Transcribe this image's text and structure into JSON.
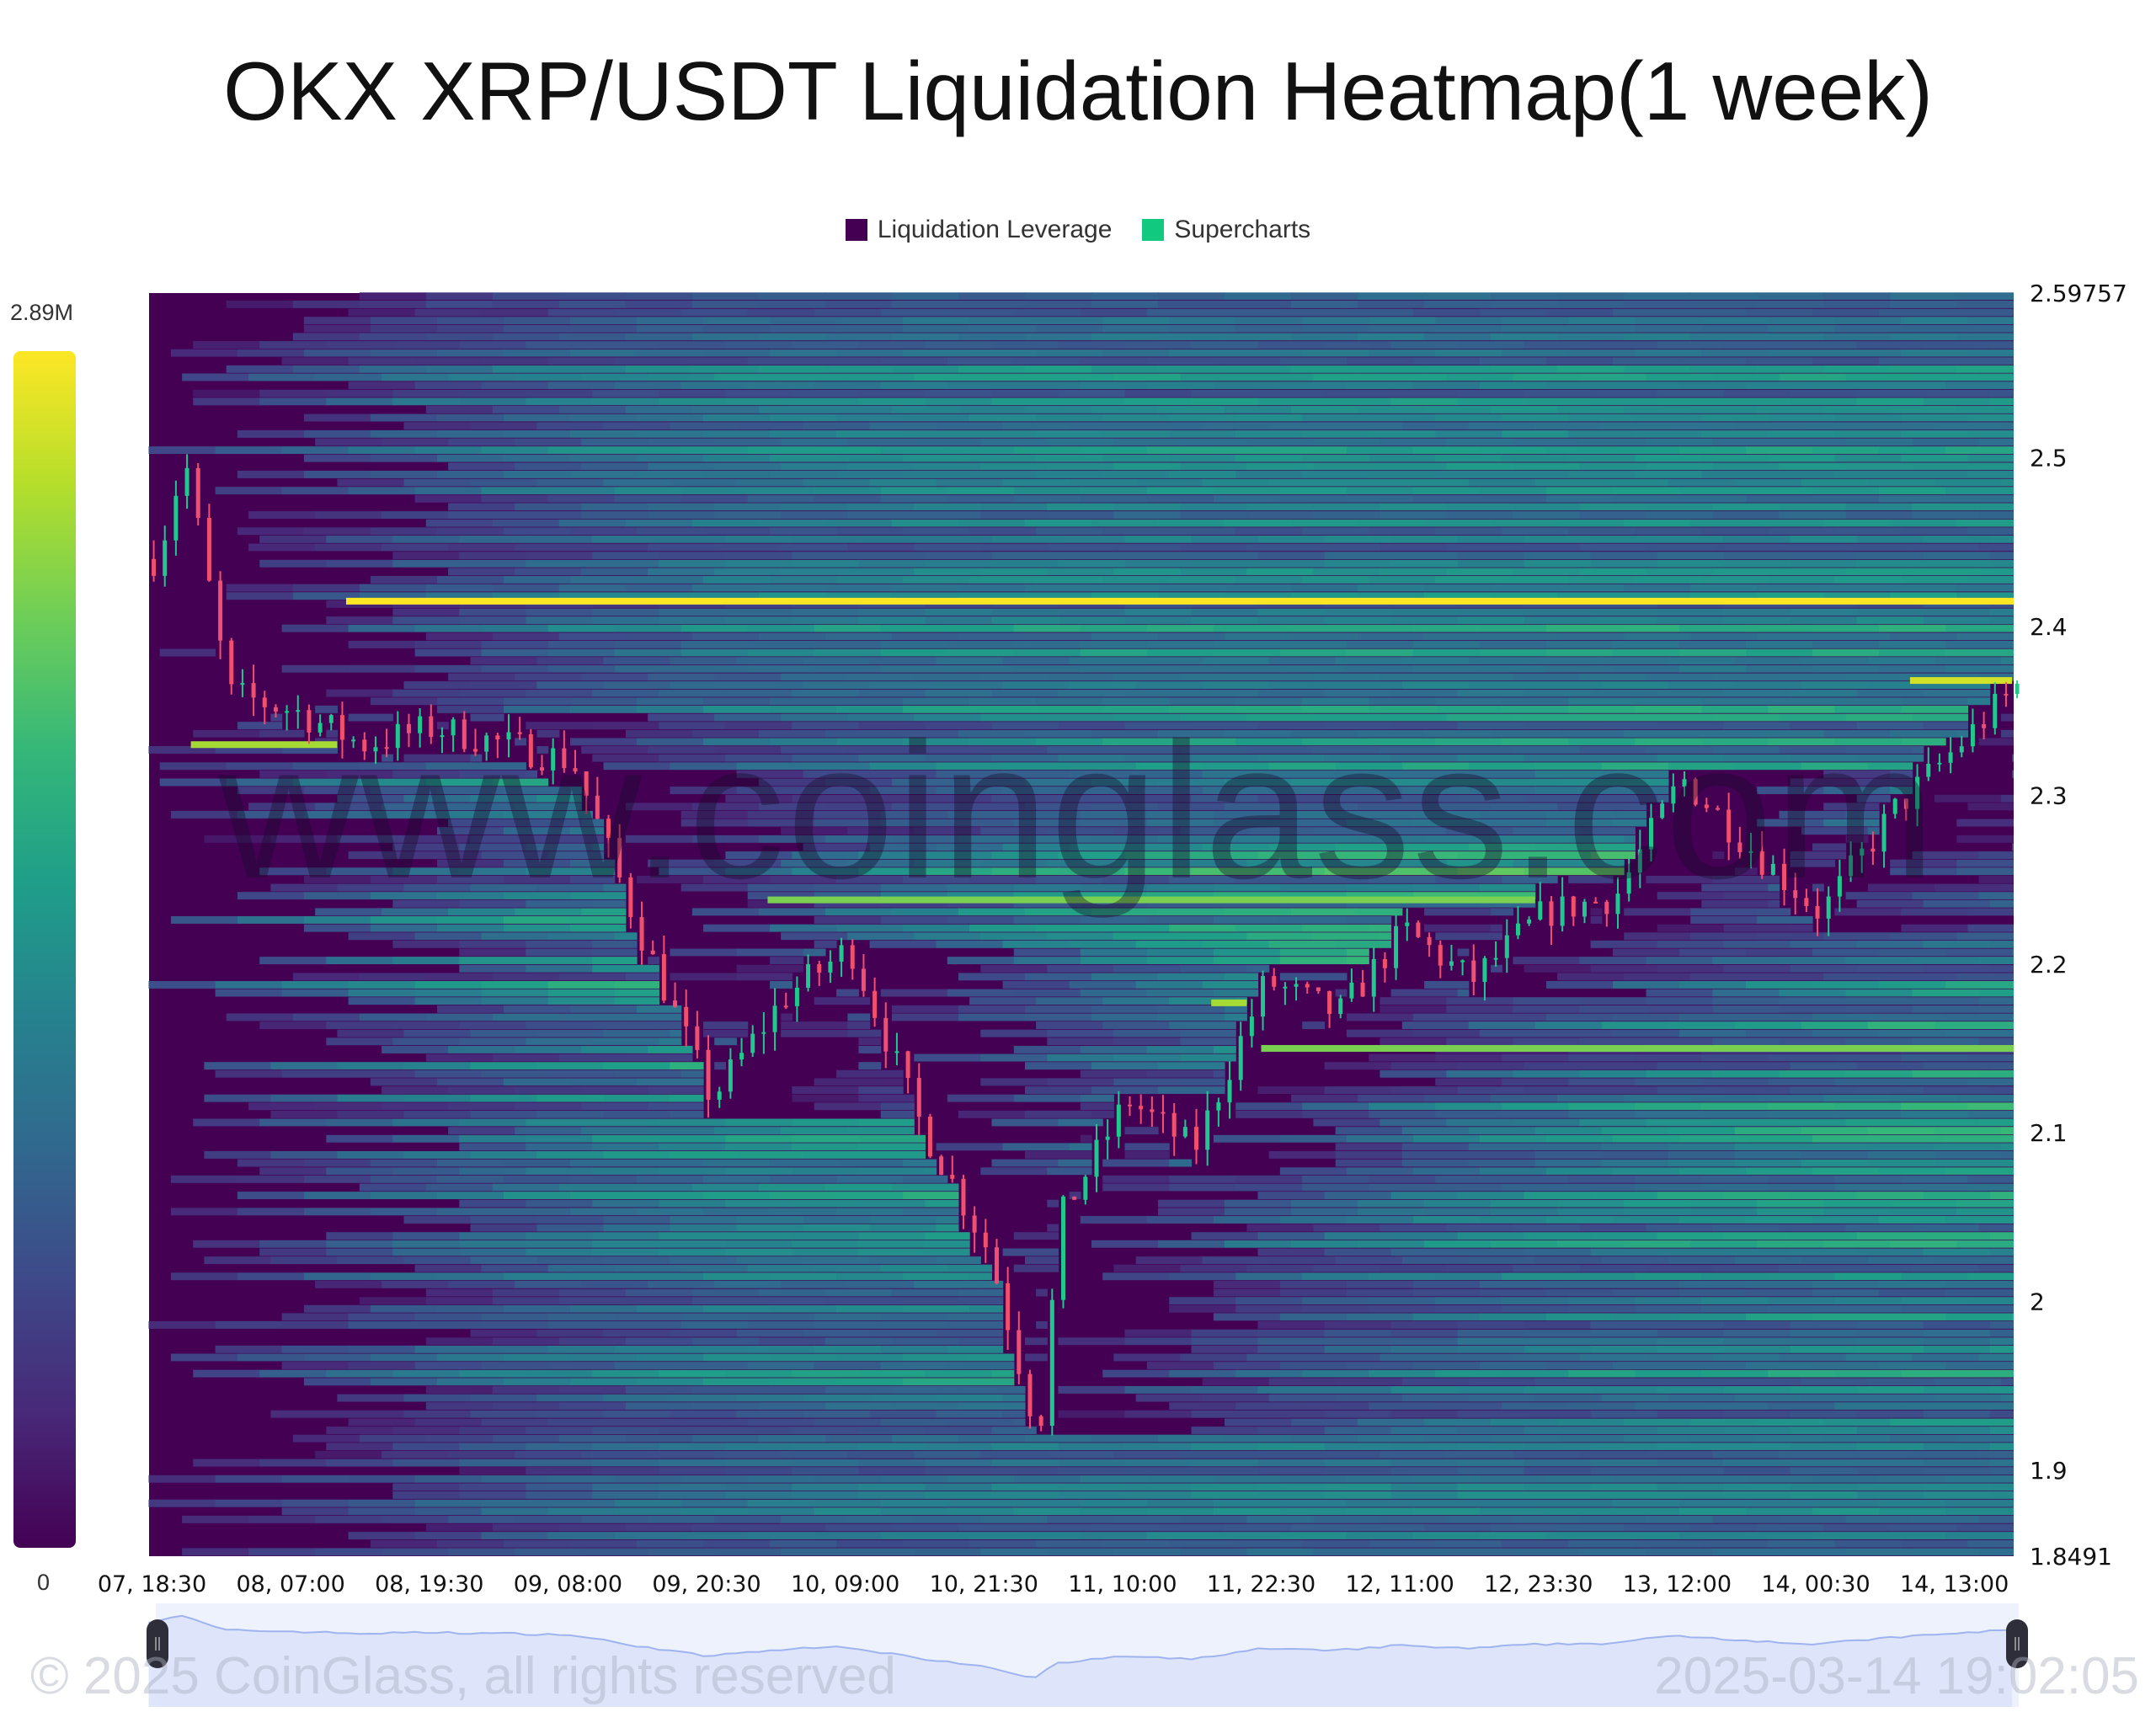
{
  "title": "OKX XRP/USDT Liquidation Heatmap(1 week)",
  "legend": [
    {
      "label": "Liquidation Leverage",
      "color": "#440154"
    },
    {
      "label": "Supercharts",
      "color": "#11c97f"
    }
  ],
  "colorbar": {
    "max_label": "2.89M",
    "min_label": "0",
    "colormap": "viridis"
  },
  "watermark": "www.coinglass.com",
  "footer": {
    "copyright": "© 2025 CoinGlass, all rights reserved",
    "timestamp": "2025-03-14 19:02:05"
  },
  "colors": {
    "background": "#440154",
    "up_candle": "#1fc98e",
    "down_candle": "#f0506e",
    "navigator_fill": "#dbe3fb",
    "navigator_line": "#9fb4ef"
  },
  "chart_data": {
    "type": "heatmap",
    "title": "OKX XRP/USDT Liquidation Heatmap(1 week)",
    "y_axis": {
      "min": 1.8491,
      "max": 2.59757,
      "ticks": [
        "2.59757",
        "2.5",
        "2.4",
        "2.3",
        "2.2",
        "2.1",
        "2",
        "1.9",
        "1.8491"
      ]
    },
    "x_axis": {
      "ticks": [
        "07, 18:30",
        "08, 07:00",
        "08, 19:30",
        "09, 08:00",
        "09, 20:30",
        "10, 09:00",
        "10, 21:30",
        "11, 10:00",
        "11, 22:30",
        "12, 11:00",
        "12, 23:30",
        "13, 12:00",
        "14, 00:30",
        "14, 13:00"
      ]
    },
    "value_range": [
      0,
      2890000
    ],
    "price_path": [
      [
        "07 18:30",
        2.44
      ],
      [
        "07 21:00",
        2.5
      ],
      [
        "08 01:00",
        2.36
      ],
      [
        "08 07:00",
        2.35
      ],
      [
        "08 13:00",
        2.33
      ],
      [
        "08 19:30",
        2.34
      ],
      [
        "09 02:00",
        2.33
      ],
      [
        "09 08:00",
        2.32
      ],
      [
        "09 14:00",
        2.22
      ],
      [
        "09 20:30",
        2.12
      ],
      [
        "10 03:00",
        2.18
      ],
      [
        "10 09:00",
        2.21
      ],
      [
        "10 15:00",
        2.11
      ],
      [
        "10 21:30",
        2.03
      ],
      [
        "11 02:00",
        1.92
      ],
      [
        "11 04:00",
        2.05
      ],
      [
        "11 10:00",
        2.12
      ],
      [
        "11 16:00",
        2.09
      ],
      [
        "11 22:30",
        2.19
      ],
      [
        "12 05:00",
        2.17
      ],
      [
        "12 11:00",
        2.22
      ],
      [
        "12 17:00",
        2.19
      ],
      [
        "12 23:30",
        2.23
      ],
      [
        "13 06:00",
        2.24
      ],
      [
        "13 12:00",
        2.31
      ],
      [
        "13 18:00",
        2.27
      ],
      [
        "14 00:30",
        2.23
      ],
      [
        "14 07:00",
        2.29
      ],
      [
        "14 13:00",
        2.33
      ],
      [
        "14 19:00",
        2.37
      ]
    ],
    "key_bands": [
      {
        "price": 2.415,
        "start": "08 12:00",
        "value": 2890000
      },
      {
        "price": 2.33,
        "start": "07 22:00",
        "value": 2500000
      },
      {
        "price": 2.238,
        "start": "10 02:00",
        "value": 2300000
      },
      {
        "price": 2.177,
        "start": "11 18:00",
        "value": 2500000
      },
      {
        "price": 2.15,
        "start": "11 22:30",
        "value": 2300000
      },
      {
        "price": 2.368,
        "start": "14 09:00",
        "value": 2700000
      }
    ]
  }
}
